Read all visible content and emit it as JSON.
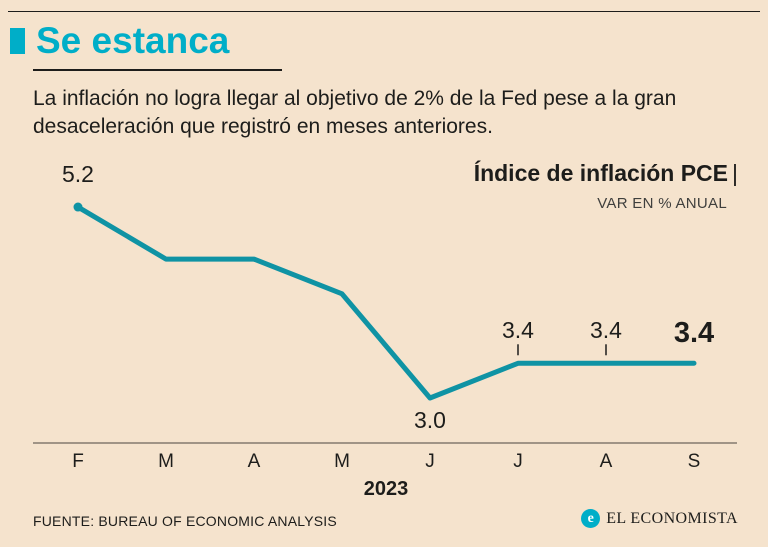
{
  "colors": {
    "background": "#f5e3cd",
    "accent": "#00aec8",
    "line": "#0f93a4",
    "text": "#1d1d1b"
  },
  "header": {
    "title": "Se estanca"
  },
  "intro": {
    "text": "La inflación no logra llegar al objetivo de 2% de la Fed pese a la gran desaceleración que registró en meses anteriores."
  },
  "chart_data": {
    "type": "line",
    "title": "Índice de inflación PCE",
    "title_separator": "|",
    "subtitle": "VAR EN % ANUAL",
    "x": [
      "F",
      "M",
      "A",
      "M",
      "J",
      "J",
      "A",
      "S"
    ],
    "values": [
      5.2,
      4.6,
      4.6,
      4.2,
      3.0,
      3.4,
      3.4,
      3.4
    ],
    "ylim": [
      2.7,
      5.5
    ],
    "year_label": "2023",
    "line_color": "#0f93a4",
    "grid": false,
    "legend": "none",
    "labeled_points": [
      {
        "index": 0,
        "label": "5.2",
        "position": "above",
        "emphasis": false
      },
      {
        "index": 4,
        "label": "3.0",
        "position": "below",
        "emphasis": false
      },
      {
        "index": 5,
        "label": "3.4",
        "position": "above",
        "emphasis": false
      },
      {
        "index": 6,
        "label": "3.4",
        "position": "above",
        "emphasis": false
      },
      {
        "index": 7,
        "label": "3.4",
        "position": "above",
        "emphasis": true
      }
    ],
    "tick_indices": [
      5,
      6
    ]
  },
  "footer": {
    "source": "FUENTE: BUREAU OF ECONOMIC ANALYSIS",
    "brand": "EL ECONOMISTA",
    "brand_icon_letter": "e"
  }
}
